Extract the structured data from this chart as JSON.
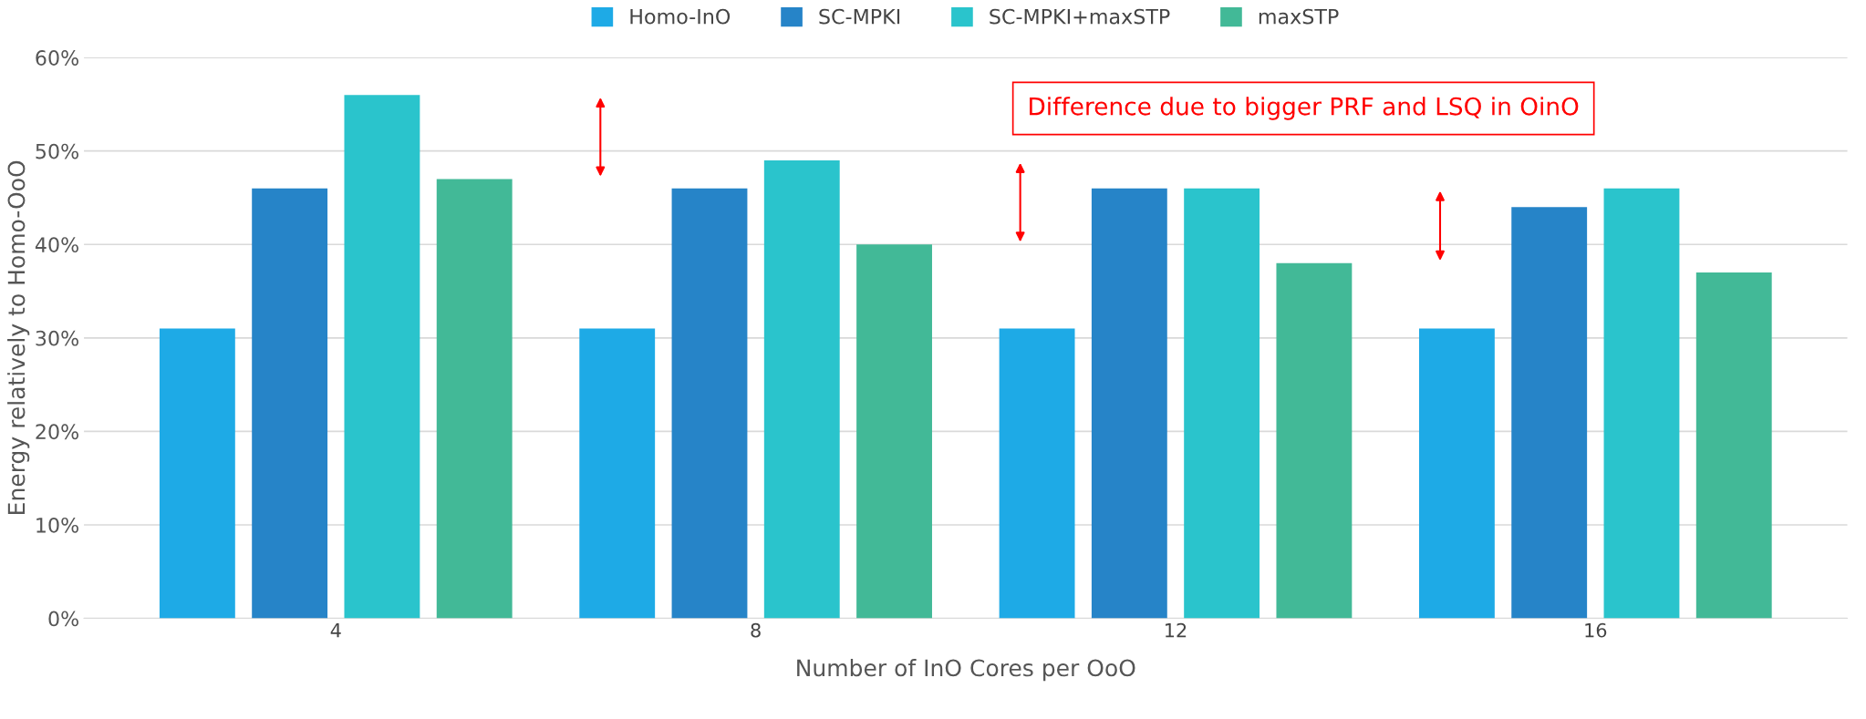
{
  "chart_data": {
    "type": "bar",
    "xlabel": "Number of InO Cores per OoO",
    "ylabel": "Energy relatively to Homo-OoO",
    "categories": [
      "4",
      "8",
      "12",
      "16"
    ],
    "series": [
      {
        "name": "Homo-InO",
        "color": "#1eaae6",
        "values": [
          31,
          31,
          31,
          31
        ]
      },
      {
        "name": "SC-MPKI",
        "color": "#2684c8",
        "values": [
          46,
          46,
          46,
          44
        ]
      },
      {
        "name": "SC-MPKI+maxSTP",
        "color": "#2ac4cc",
        "values": [
          56,
          49,
          46,
          46
        ]
      },
      {
        "name": "maxSTP",
        "color": "#42b997",
        "values": [
          47,
          40,
          38,
          37
        ]
      }
    ],
    "ylim": [
      0,
      60
    ],
    "yticks": [
      {
        "value": 0,
        "label": "0%"
      },
      {
        "value": 10,
        "label": "10%"
      },
      {
        "value": 20,
        "label": "20%"
      },
      {
        "value": 30,
        "label": "30%"
      },
      {
        "value": 40,
        "label": "40%"
      },
      {
        "value": 50,
        "label": "50%"
      },
      {
        "value": 60,
        "label": "60%"
      }
    ],
    "grid": "y",
    "legend": "top",
    "annotations": [
      "Difference due to bigger PRF and LSQ in OinO"
    ]
  }
}
